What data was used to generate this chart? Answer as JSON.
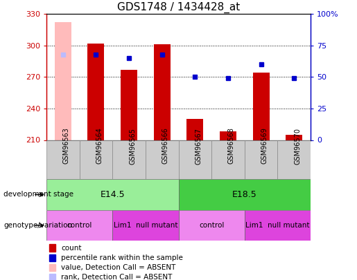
{
  "title": "GDS1748 / 1434428_at",
  "samples": [
    "GSM96563",
    "GSM96564",
    "GSM96565",
    "GSM96566",
    "GSM96567",
    "GSM96568",
    "GSM96569",
    "GSM96570"
  ],
  "ylim_left": [
    210,
    330
  ],
  "ylim_right": [
    0,
    100
  ],
  "yticks_left": [
    210,
    240,
    270,
    300,
    330
  ],
  "yticks_right": [
    0,
    25,
    50,
    75,
    100
  ],
  "ytick_labels_right": [
    "0",
    "25",
    "50",
    "75",
    "100%"
  ],
  "count_values": [
    null,
    302,
    277,
    301,
    230,
    218,
    274,
    215
  ],
  "rank_pct": [
    null,
    68,
    65,
    68,
    50,
    49,
    60,
    49
  ],
  "absent_count_value": 322,
  "absent_rank_pct": 68,
  "color_count": "#cc0000",
  "color_rank": "#0000cc",
  "color_absent_count": "#ffbbbb",
  "color_absent_rank": "#bbbbff",
  "dev_stage_e145_color": "#99ee99",
  "dev_stage_e185_color": "#44cc44",
  "genotype_control_color": "#ee88ee",
  "genotype_mutant_color": "#dd44dd",
  "dev_stage_label": "development stage",
  "genotype_label": "genotype/variation",
  "legend_items": [
    {
      "label": "count",
      "color": "#cc0000"
    },
    {
      "label": "percentile rank within the sample",
      "color": "#0000cc"
    },
    {
      "label": "value, Detection Call = ABSENT",
      "color": "#ffbbbb"
    },
    {
      "label": "rank, Detection Call = ABSENT",
      "color": "#bbbbff"
    }
  ],
  "dev_regions": [
    {
      "label": "E14.5",
      "start": 0,
      "end": 4,
      "color": "#99ee99"
    },
    {
      "label": "E18.5",
      "start": 4,
      "end": 8,
      "color": "#44cc44"
    }
  ],
  "geno_regions": [
    {
      "label": "control",
      "start": 0,
      "end": 2,
      "color": "#ee88ee"
    },
    {
      "label": "Lim1  null mutant",
      "start": 2,
      "end": 4,
      "color": "#dd44dd"
    },
    {
      "label": "control",
      "start": 4,
      "end": 6,
      "color": "#ee88ee"
    },
    {
      "label": "Lim1  null mutant",
      "start": 6,
      "end": 8,
      "color": "#dd44dd"
    }
  ]
}
